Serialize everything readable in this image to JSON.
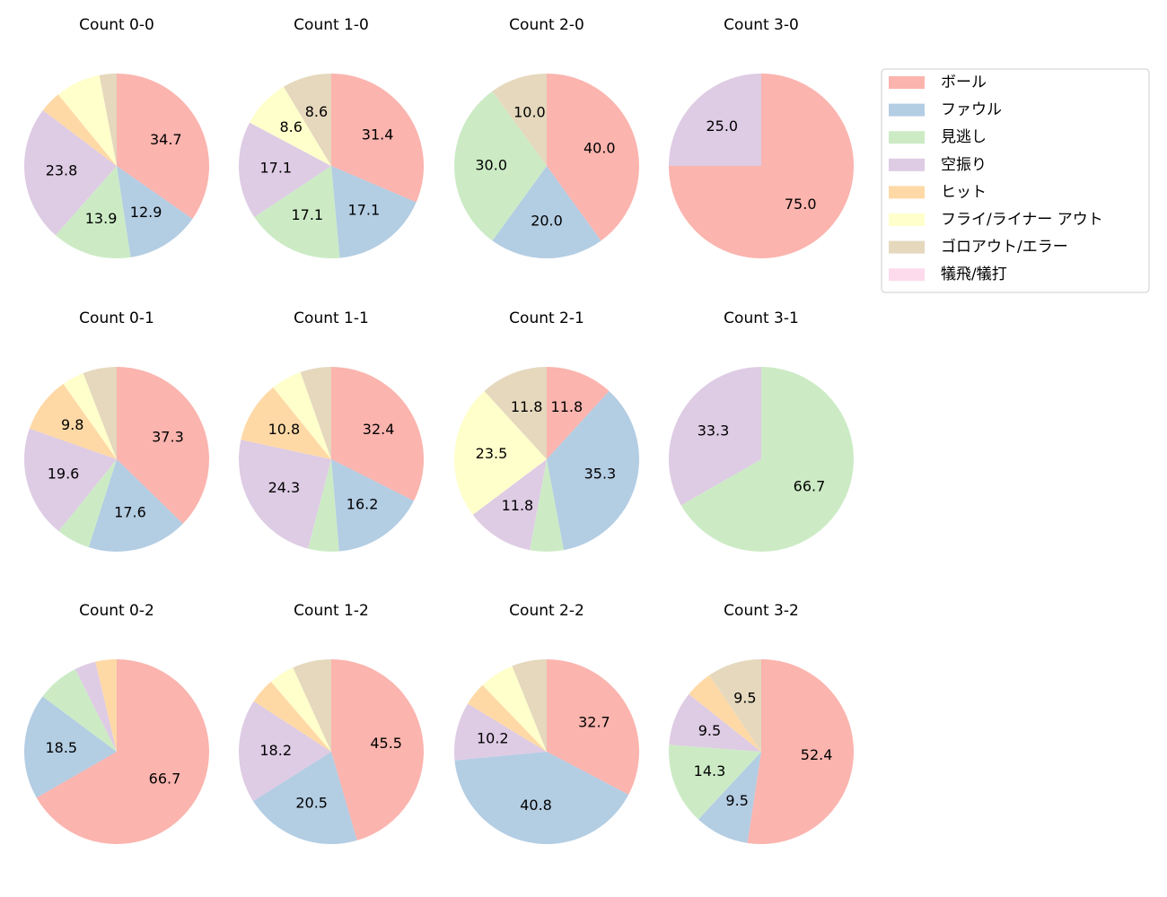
{
  "legend": {
    "labels": [
      "ボール",
      "ファウル",
      "見逃し",
      "空振り",
      "ヒット",
      "フライ/ライナー アウト",
      "ゴロアウト/エラー",
      "犠飛/犠打"
    ],
    "colors": [
      "#fbb4ae",
      "#b3cde3",
      "#ccebc5",
      "#decbe4",
      "#fed9a6",
      "#ffffcc",
      "#e5d8bd",
      "#fddaec"
    ]
  },
  "chart_data": [
    {
      "type": "pie",
      "title": "Count 0-0",
      "values": [
        34.7,
        12.9,
        13.9,
        23.8,
        3.8,
        7.9,
        3.0,
        0
      ],
      "value_labels": [
        "34.7",
        "12.9",
        "13.9",
        "23.8",
        null,
        null,
        null,
        null
      ]
    },
    {
      "type": "pie",
      "title": "Count 1-0",
      "values": [
        31.4,
        17.1,
        17.1,
        17.1,
        0,
        8.6,
        8.6,
        0
      ],
      "value_labels": [
        "31.4",
        "17.1",
        "17.1",
        "17.1",
        null,
        "8.6",
        "8.6",
        null
      ]
    },
    {
      "type": "pie",
      "title": "Count 2-0",
      "values": [
        40,
        20,
        30,
        0,
        0,
        0,
        10,
        0
      ],
      "value_labels": [
        "40.0",
        "20.0",
        "30.0",
        null,
        null,
        null,
        "10.0",
        null
      ]
    },
    {
      "type": "pie",
      "title": "Count 3-0",
      "values": [
        75,
        0,
        0,
        25,
        0,
        0,
        0,
        0
      ],
      "value_labels": [
        "75.0",
        null,
        null,
        "25.0",
        null,
        null,
        null,
        null
      ]
    },
    {
      "type": "pie",
      "title": "Count 0-1",
      "values": [
        37.3,
        17.6,
        5.9,
        19.6,
        9.8,
        3.9,
        5.9,
        0
      ],
      "value_labels": [
        "37.3",
        "17.6",
        null,
        "19.6",
        "9.8",
        null,
        null,
        null
      ]
    },
    {
      "type": "pie",
      "title": "Count 1-1",
      "values": [
        32.4,
        16.2,
        5.4,
        24.3,
        10.8,
        5.4,
        5.4,
        0
      ],
      "value_labels": [
        "32.4",
        "16.2",
        null,
        "24.3",
        "10.8",
        null,
        null,
        null
      ]
    },
    {
      "type": "pie",
      "title": "Count 2-1",
      "values": [
        11.8,
        35.3,
        5.9,
        11.8,
        0,
        23.5,
        11.8,
        0
      ],
      "value_labels": [
        "11.8",
        "35.3",
        null,
        "11.8",
        null,
        "23.5",
        "11.8",
        null
      ]
    },
    {
      "type": "pie",
      "title": "Count 3-1",
      "values": [
        0,
        0,
        66.7,
        33.3,
        0,
        0,
        0,
        0
      ],
      "value_labels": [
        null,
        null,
        "66.7",
        "33.3",
        null,
        null,
        null,
        null
      ]
    },
    {
      "type": "pie",
      "title": "Count 0-2",
      "values": [
        66.7,
        18.5,
        7.4,
        3.7,
        3.7,
        0,
        0,
        0
      ],
      "value_labels": [
        "66.7",
        "18.5",
        null,
        null,
        null,
        null,
        null,
        null
      ]
    },
    {
      "type": "pie",
      "title": "Count 1-2",
      "values": [
        45.5,
        20.5,
        0,
        18.2,
        4.5,
        4.5,
        6.8,
        0
      ],
      "value_labels": [
        "45.5",
        "20.5",
        null,
        "18.2",
        null,
        null,
        null,
        null
      ]
    },
    {
      "type": "pie",
      "title": "Count 2-2",
      "values": [
        32.7,
        40.8,
        0,
        10.2,
        4.1,
        6.1,
        6.1,
        0
      ],
      "value_labels": [
        "32.7",
        "40.8",
        null,
        "10.2",
        null,
        null,
        null,
        null
      ]
    },
    {
      "type": "pie",
      "title": "Count 3-2",
      "values": [
        52.4,
        9.5,
        14.3,
        9.5,
        4.8,
        0,
        9.5,
        0
      ],
      "value_labels": [
        "52.4",
        "9.5",
        "14.3",
        "9.5",
        null,
        null,
        "9.5",
        null
      ]
    }
  ]
}
